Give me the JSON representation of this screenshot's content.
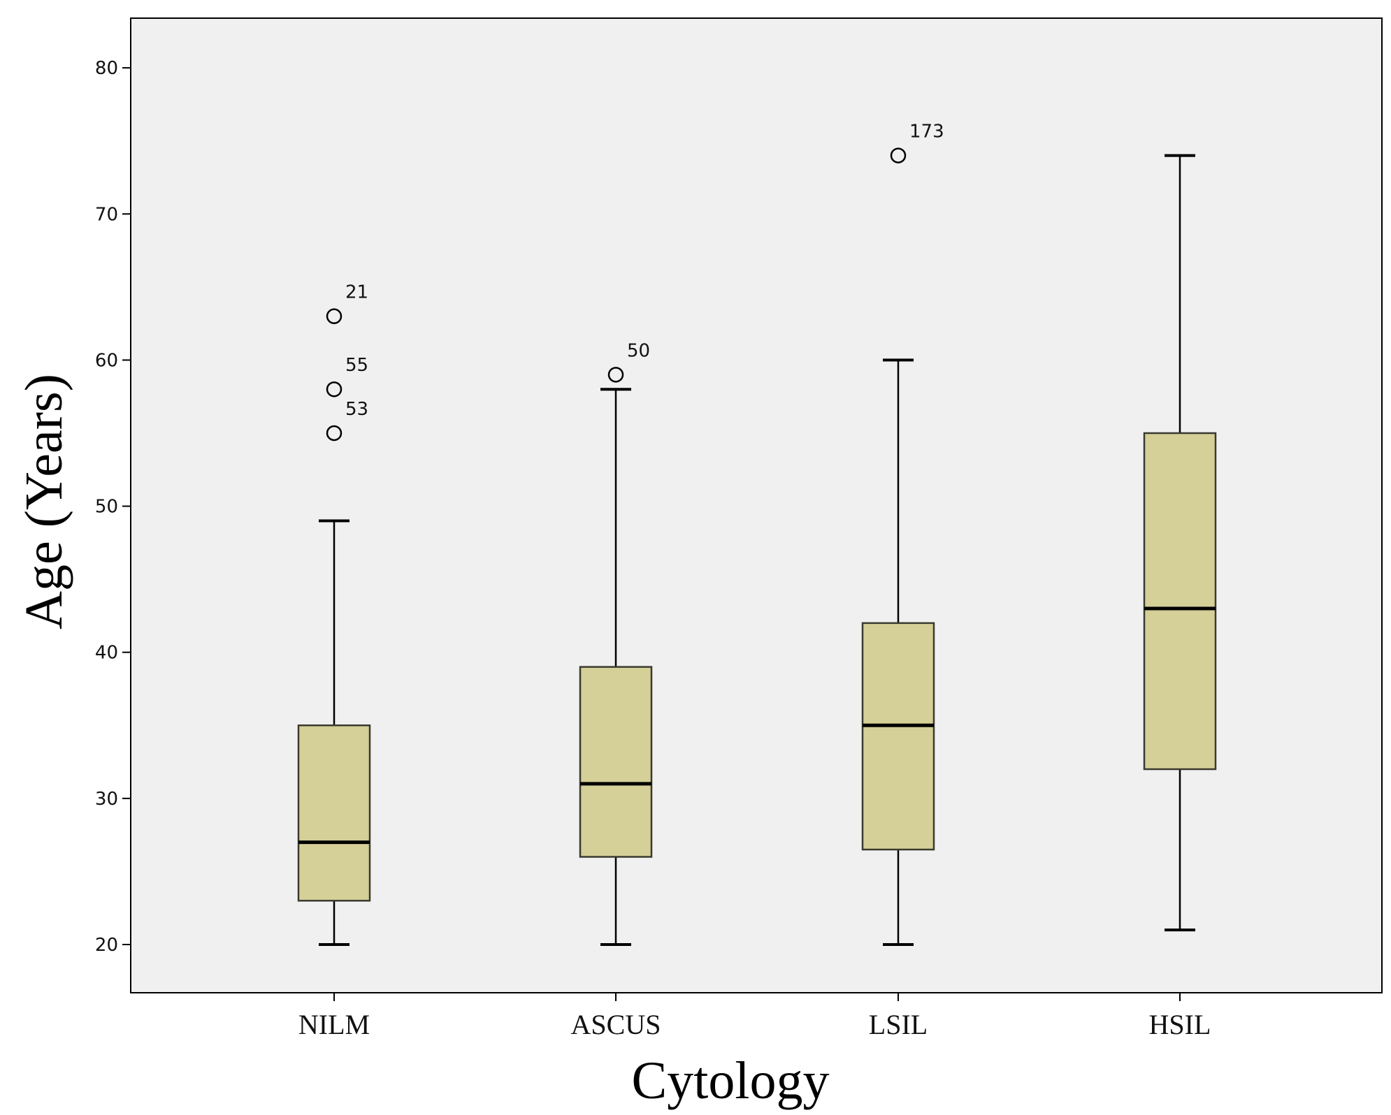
{
  "chart_data": {
    "type": "boxplot",
    "title": "",
    "xlabel": "Cytology",
    "ylabel": "Age (Years)",
    "ylim": [
      16.7,
      83.4
    ],
    "yticks": [
      20,
      30,
      40,
      50,
      60,
      70,
      80
    ],
    "grid": false,
    "colors": {
      "plot_bg": "#f0f0f0",
      "box_fill": "#d5cf98",
      "stroke": "#000000",
      "page_bg": "#ffffff"
    },
    "categories": [
      "NILM",
      "ASCUS",
      "LSIL",
      "HSIL"
    ],
    "boxes": [
      {
        "category": "NILM",
        "whisker_low": 20,
        "q1": 23,
        "median": 27,
        "q3": 35,
        "whisker_high": 49,
        "outliers": [
          {
            "value": 63,
            "label": "21"
          },
          {
            "value": 58,
            "label": "55"
          },
          {
            "value": 55,
            "label": "53"
          }
        ]
      },
      {
        "category": "ASCUS",
        "whisker_low": 20,
        "q1": 26,
        "median": 31,
        "q3": 39,
        "whisker_high": 58,
        "outliers": [
          {
            "value": 59,
            "label": "50"
          }
        ]
      },
      {
        "category": "LSIL",
        "whisker_low": 20,
        "q1": 26.5,
        "median": 35,
        "q3": 42,
        "whisker_high": 60,
        "outliers": [
          {
            "value": 74,
            "label": "173"
          }
        ]
      },
      {
        "category": "HSIL",
        "whisker_low": 21,
        "q1": 32,
        "median": 43,
        "q3": 55,
        "whisker_high": 74,
        "outliers": []
      }
    ]
  }
}
